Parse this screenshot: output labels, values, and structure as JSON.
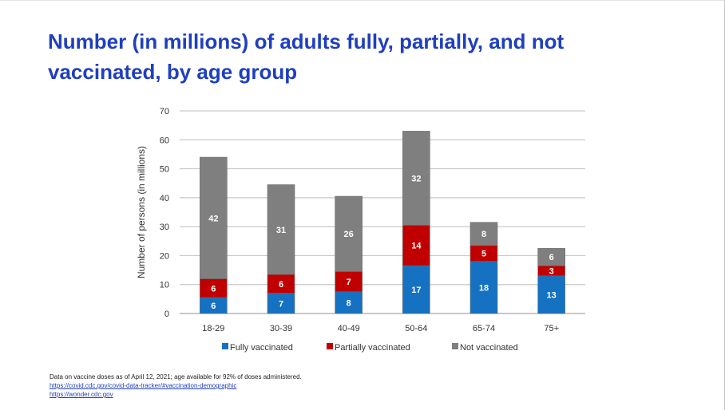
{
  "title_lines": [
    "Number (in millions) of adults fully, partially, and not",
    "vaccinated, by age group"
  ],
  "colors": {
    "title": "#1f3fbf",
    "fully": "#1571c2",
    "partially": "#c00000",
    "not": "#7f7f7f"
  },
  "chart_data": {
    "type": "bar",
    "stacked": true,
    "categories": [
      "18-29",
      "30-39",
      "40-49",
      "50-64",
      "65-74",
      "75+"
    ],
    "series": [
      {
        "name": "Fully vaccinated",
        "color": "#1571c2",
        "values": [
          6,
          7,
          8,
          17,
          18,
          13
        ],
        "labels": [
          "6",
          "7",
          "8",
          "17",
          "18",
          "13"
        ],
        "plot": [
          5.5,
          7,
          7.5,
          16.5,
          18,
          13
        ]
      },
      {
        "name": "Partially vaccinated",
        "color": "#c00000",
        "values": [
          6,
          6,
          7,
          14,
          5,
          3
        ],
        "labels": [
          "6",
          "6",
          "7",
          "14",
          "5",
          "3"
        ],
        "plot": [
          6.5,
          6.5,
          7,
          14,
          5.5,
          3.5
        ]
      },
      {
        "name": "Not vaccinated",
        "color": "#7f7f7f",
        "values": [
          42,
          31,
          26,
          32,
          8,
          6
        ],
        "labels": [
          "42",
          "31",
          "26",
          "32",
          "8",
          "6"
        ],
        "plot": [
          42,
          31,
          26,
          32.5,
          8,
          6
        ]
      }
    ],
    "ylabel": "Number of persons (in millions)",
    "xlabel": "",
    "ylim": [
      0,
      70
    ],
    "yticks": [
      "0",
      "10",
      "20",
      "30",
      "40",
      "50",
      "60",
      "70"
    ],
    "grid": true,
    "legend_position": "bottom"
  },
  "footnote": {
    "note": "Data on vaccine doses as of April 12, 2021; age available for 92% of doses administered.",
    "sources": [
      "https://covid.cdc.gov/covid-data-tracker/#vaccination-demographic",
      "https://wonder.cdc.gov"
    ]
  }
}
